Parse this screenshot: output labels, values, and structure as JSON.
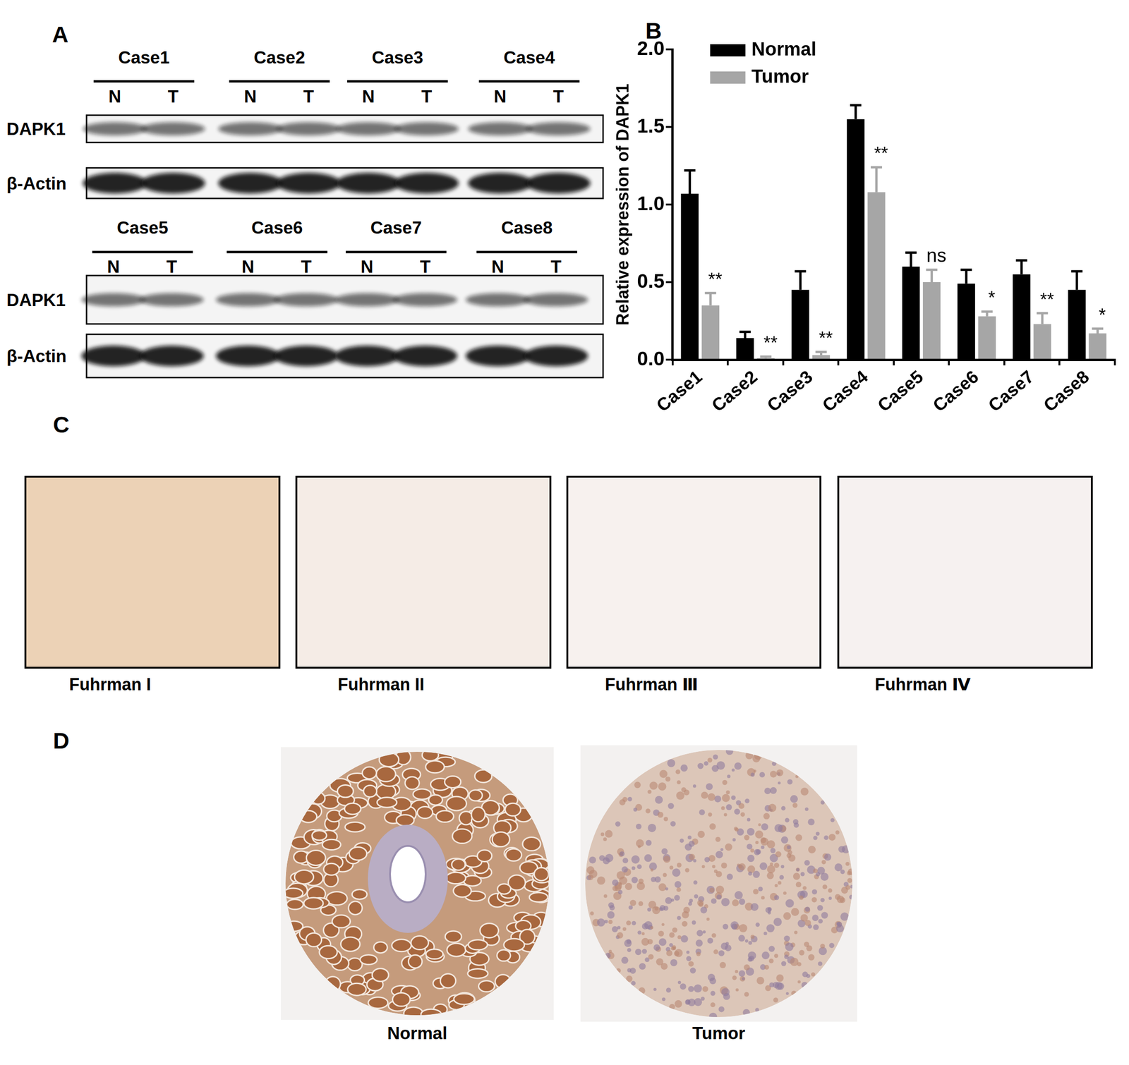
{
  "chart_data": {
    "type": "bar",
    "panel": "B",
    "ylabel": "Relative expression of DAPK1",
    "categories": [
      "Case1",
      "Case2",
      "Case3",
      "Case4",
      "Case5",
      "Case6",
      "Case7",
      "Case8"
    ],
    "series": [
      {
        "name": "Normal",
        "color": "#000000",
        "values": [
          1.07,
          0.14,
          0.45,
          1.55,
          0.6,
          0.49,
          0.55,
          0.45
        ],
        "errors": [
          0.15,
          0.04,
          0.12,
          0.09,
          0.09,
          0.09,
          0.09,
          0.12
        ]
      },
      {
        "name": "Tumor",
        "color": "#a6a6a6",
        "values": [
          0.35,
          0.01,
          0.03,
          1.08,
          0.5,
          0.28,
          0.23,
          0.17
        ],
        "errors": [
          0.08,
          0.01,
          0.02,
          0.16,
          0.08,
          0.03,
          0.07,
          0.03
        ],
        "annotations": [
          "**",
          "**",
          "**",
          "**",
          "ns",
          "*",
          "**",
          "*"
        ]
      }
    ],
    "ylim": [
      0,
      2
    ],
    "yticks": [
      {
        "value": 0,
        "label": "0.0"
      },
      0.5,
      {
        "value": 1,
        "label": "1.0"
      },
      1.5,
      {
        "value": 2,
        "label": "2.0"
      }
    ],
    "grid": false,
    "legend": "upper left"
  },
  "figure": {
    "A": {
      "label": "A",
      "blots": [
        {
          "cases": [
            "Case1",
            "Case2",
            "Case3",
            "Case4"
          ],
          "lanes": [
            "N",
            "T"
          ],
          "rows": [
            "DAPK1",
            "β-Actin"
          ]
        },
        {
          "cases": [
            "Case5",
            "Case6",
            "Case7",
            "Case8"
          ],
          "lanes": [
            "N",
            "T"
          ],
          "rows": [
            "DAPK1",
            "β-Actin"
          ]
        }
      ]
    },
    "C": {
      "label": "C",
      "captions": [
        "Fuhrman I",
        "Fuhrman II",
        "Fuhrman Ⅲ",
        "Fuhrman Ⅳ"
      ]
    },
    "D": {
      "label": "D",
      "captions": [
        "Normal",
        "Tumor"
      ]
    }
  }
}
